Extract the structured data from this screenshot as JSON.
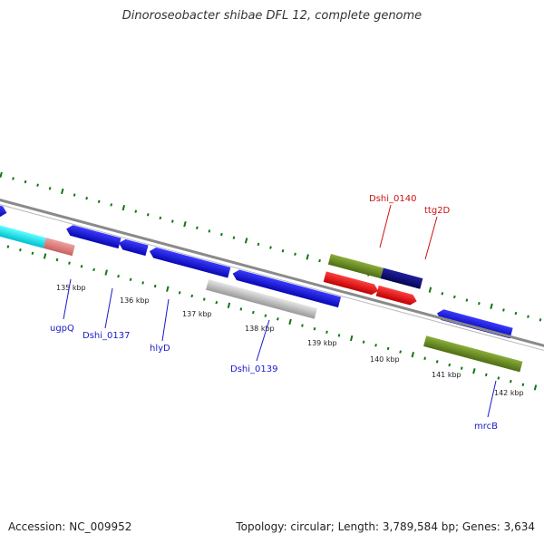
{
  "header": {
    "title": "Dinoroseobacter shibae DFL 12, complete genome"
  },
  "footer": {
    "accession": "Accession: NC_009952",
    "topology": "Topology: circular; Length: 3,789,584 bp; Genes: 3,634"
  },
  "ticks": {
    "kbp_labels": [
      "135 kbp",
      "136 kbp",
      "137 kbp",
      "138 kbp",
      "139 kbp",
      "140 kbp",
      "141 kbp",
      "142 kbp"
    ]
  },
  "genes": {
    "labels": [
      "ugpQ",
      "Dshi_0137",
      "hlyD",
      "Dshi_0139",
      "mrcB",
      "Dshi_0140",
      "ttg2D"
    ]
  },
  "colors": {
    "cds": "#1010e0",
    "cds_dark": "#0a0a80",
    "cyan": "#00e8f0",
    "salmon": "#e88080",
    "olive": "#6b8e23",
    "red_gene": "#ff0000",
    "grey_gene": "#bbbbbb",
    "tick": "#117711",
    "backbone": "#888888"
  }
}
